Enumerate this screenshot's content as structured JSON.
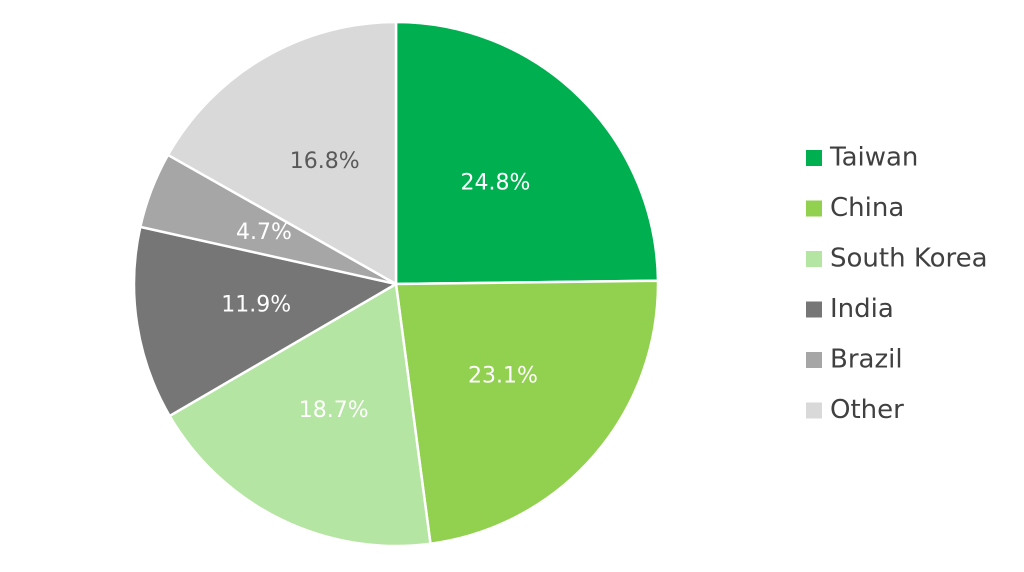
{
  "chart_data": {
    "type": "pie",
    "categories": [
      "Taiwan",
      "China",
      "South Korea",
      "India",
      "Brazil",
      "Other"
    ],
    "values": [
      24.8,
      23.1,
      18.7,
      11.9,
      4.7,
      16.8
    ],
    "value_labels": [
      "24.8%",
      "23.1%",
      "18.7%",
      "11.9%",
      "4.7%",
      "16.8%"
    ],
    "colors": [
      "#00b050",
      "#92d050",
      "#b5e5a2",
      "#767676",
      "#a6a6a6",
      "#d9d9d9"
    ],
    "label_colors": [
      "#ffffff",
      "#ffffff",
      "#ffffff",
      "#ffffff",
      "#ffffff",
      "#595959"
    ],
    "legend": "right"
  }
}
